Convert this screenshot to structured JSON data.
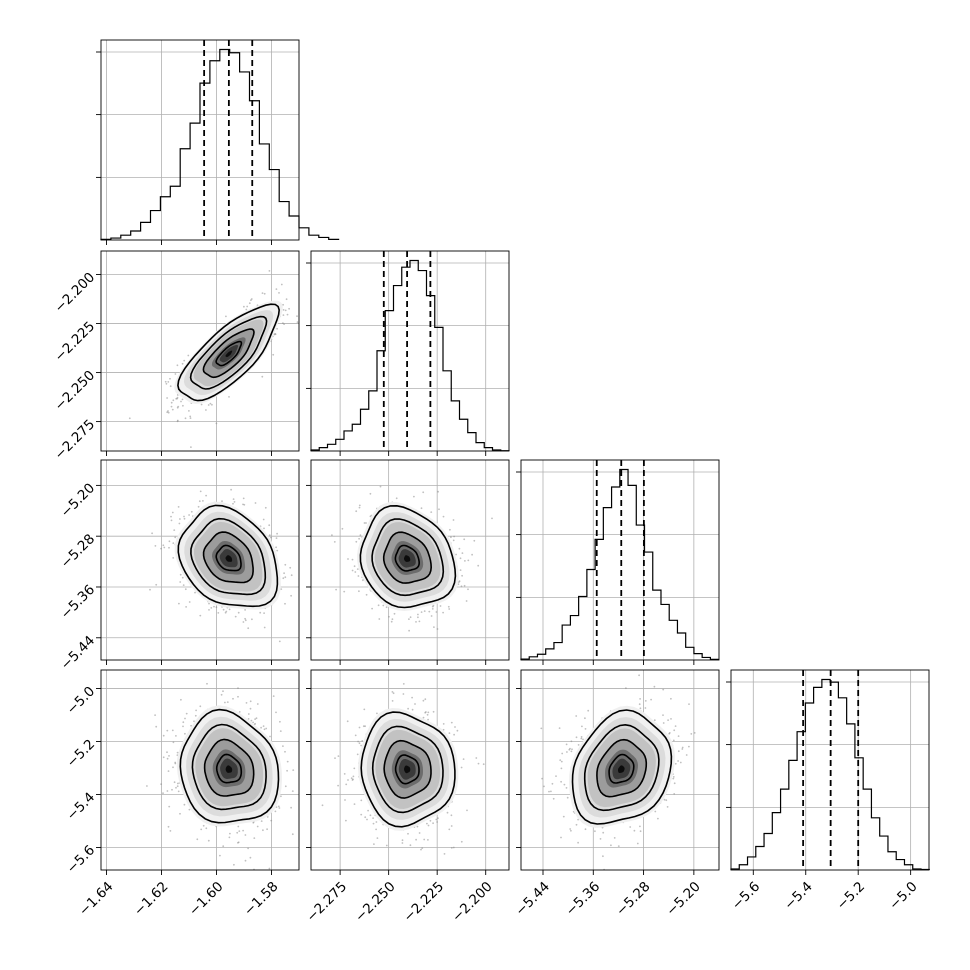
{
  "chart_data": {
    "type": "corner",
    "grid": true,
    "parameters": [
      {
        "ticks": [
          -1.64,
          -1.62,
          -1.6,
          -1.58
        ],
        "tick_labels": [
          "−1.64",
          "−1.62",
          "−1.60",
          "−1.58"
        ],
        "range": [
          -1.642,
          -1.57
        ],
        "center": -1.5955,
        "sigma": 0.0085,
        "quantiles": [
          -1.6045,
          -1.5955,
          -1.587
        ],
        "hist": {
          "edges_start": -1.642,
          "bin_width": 0.0036,
          "counts": [
            0.2,
            0.6,
            1.5,
            2.8,
            5.5,
            9.2,
            13.5,
            16.8,
            28.5,
            36.5,
            49.0,
            56.0,
            59.5,
            58.5,
            52.5,
            43.5,
            30.0,
            22.0,
            12.0,
            7.5,
            3.8,
            1.5,
            0.8,
            0.2
          ]
        }
      },
      {
        "ticks": [
          -2.275,
          -2.25,
          -2.225,
          -2.2
        ],
        "tick_labels": [
          "−2.275",
          "−2.250",
          "−2.225",
          "−2.200"
        ],
        "range": [
          -2.29,
          -2.188
        ],
        "center": -2.2405,
        "sigma": 0.0115,
        "quantiles": [
          -2.2525,
          -2.2405,
          -2.2285
        ],
        "hist": {
          "edges_start": -2.29,
          "bin_width": 0.00425,
          "counts": [
            0.3,
            1.0,
            2.0,
            3.5,
            6.0,
            8.0,
            12.5,
            18.0,
            30.0,
            42.0,
            49.5,
            55.0,
            57.0,
            54.0,
            46.5,
            37.0,
            24.0,
            15.0,
            9.5,
            5.5,
            2.5,
            1.0,
            0.3,
            0.1
          ]
        }
      },
      {
        "ticks": [
          -5.44,
          -5.36,
          -5.28,
          -5.2
        ],
        "tick_labels": [
          "−5.44",
          "−5.36",
          "−5.28",
          "−5.20"
        ],
        "range": [
          -5.475,
          -5.16
        ],
        "center": -5.3155,
        "sigma": 0.0375,
        "quantiles": [
          -5.3545,
          -5.3155,
          -5.2795
        ],
        "hist": {
          "edges_start": -5.475,
          "bin_width": 0.0131,
          "counts": [
            0.3,
            1.0,
            1.8,
            3.5,
            5.5,
            11.0,
            14.0,
            20.0,
            28.5,
            38.0,
            48.0,
            54.5,
            60.0,
            55.0,
            42.5,
            34.0,
            22.0,
            17.5,
            12.5,
            8.5,
            4.0,
            2.0,
            0.8,
            0.2
          ]
        }
      },
      {
        "ticks": [
          -5.6,
          -5.4,
          -5.2,
          -5.0
        ],
        "tick_labels": [
          "−5.6",
          "−5.4",
          "−5.2",
          "−5.0"
        ],
        "range": [
          -5.685,
          -4.93
        ],
        "center": -5.305,
        "sigma": 0.1,
        "quantiles": [
          -5.41,
          -5.305,
          -5.2
        ],
        "hist": {
          "edges_start": -5.685,
          "bin_width": 0.0315,
          "counts": [
            0.2,
            1.0,
            2.5,
            4.5,
            7.0,
            11.0,
            15.5,
            21.0,
            26.5,
            32.0,
            35.0,
            36.5,
            36.0,
            33.0,
            28.0,
            21.5,
            15.5,
            10.0,
            6.5,
            3.5,
            2.0,
            1.0,
            0.2,
            0.1
          ]
        }
      }
    ],
    "correlations": [
      {
        "row": 1,
        "col": 0,
        "rho": 0.75
      },
      {
        "row": 2,
        "col": 0,
        "rho": -0.25
      },
      {
        "row": 2,
        "col": 1,
        "rho": -0.15
      },
      {
        "row": 3,
        "col": 0,
        "rho": -0.1
      },
      {
        "row": 3,
        "col": 1,
        "rho": -0.05
      },
      {
        "row": 3,
        "col": 2,
        "rho": 0.2
      }
    ],
    "contour_levels_sigma": [
      0.5,
      1.0,
      1.5,
      2.0
    ]
  }
}
